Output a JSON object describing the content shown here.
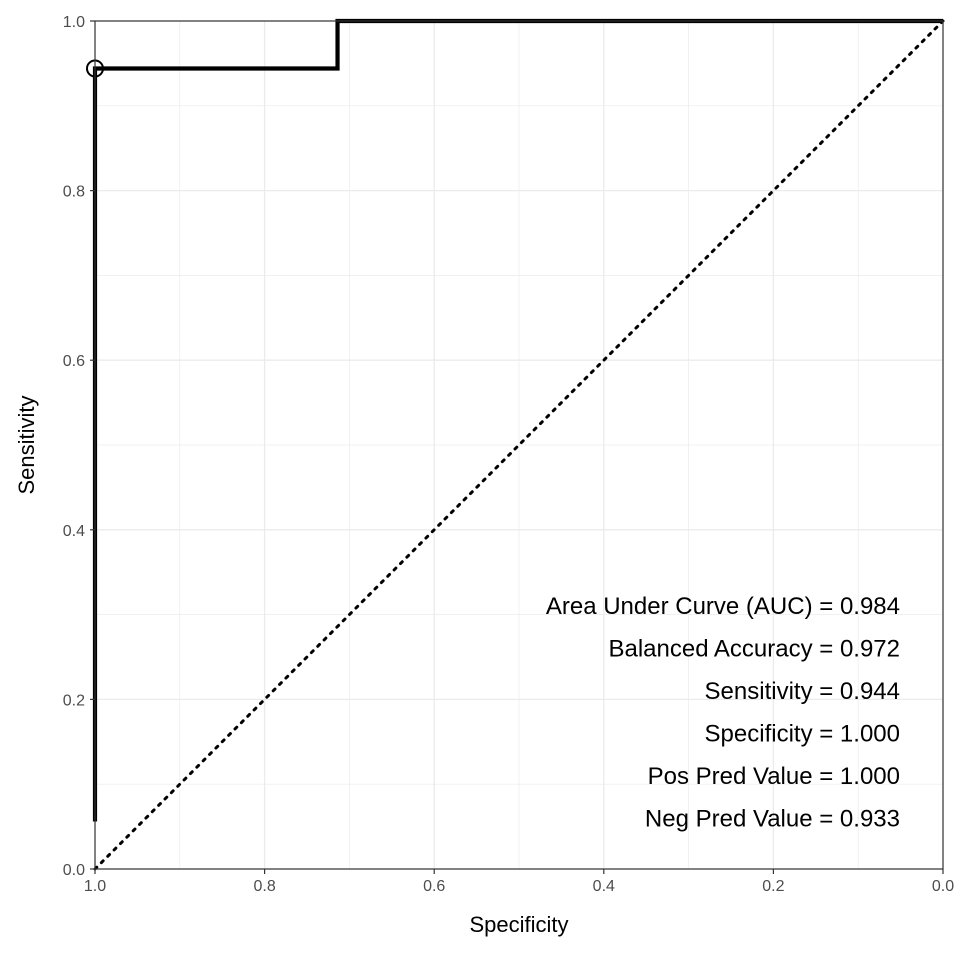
{
  "chart_data": {
    "type": "line",
    "xlabel": "Specificity",
    "ylabel": "Sensitivity",
    "xlim": [
      1.0,
      0.0
    ],
    "ylim": [
      0.0,
      1.0
    ],
    "x_reversed": true,
    "grid": true,
    "x_ticks": [
      "1.0",
      "0.8",
      "0.6",
      "0.4",
      "0.2",
      "0.0"
    ],
    "y_ticks": [
      "0.0",
      "0.2",
      "0.4",
      "0.6",
      "0.8",
      "1.0"
    ],
    "series": [
      {
        "specificity": [
          1.0,
          1.0,
          1.0,
          0.714,
          0.714,
          0.0
        ],
        "sensitivity": [
          0.056,
          0.944,
          0.944,
          0.944,
          1.0,
          1.0
        ],
        "style": "solid"
      },
      {
        "specificity": [
          1.0,
          0.0
        ],
        "sensitivity": [
          0.0,
          1.0
        ],
        "style": "dotted"
      }
    ],
    "highlight_point": {
      "specificity": 1.0,
      "sensitivity": 0.944
    },
    "annotations": [
      "Area Under Curve (AUC) = 0.984",
      "Balanced Accuracy = 0.972",
      "Sensitivity = 0.944",
      "Specificity = 1.000",
      "Pos Pred Value = 1.000",
      "Neg Pred Value = 0.933"
    ],
    "colors": {
      "curve": "#000000",
      "grid": "#ebebeb",
      "panel_border": "#333333",
      "tick_text": "#4d4d4d"
    }
  }
}
